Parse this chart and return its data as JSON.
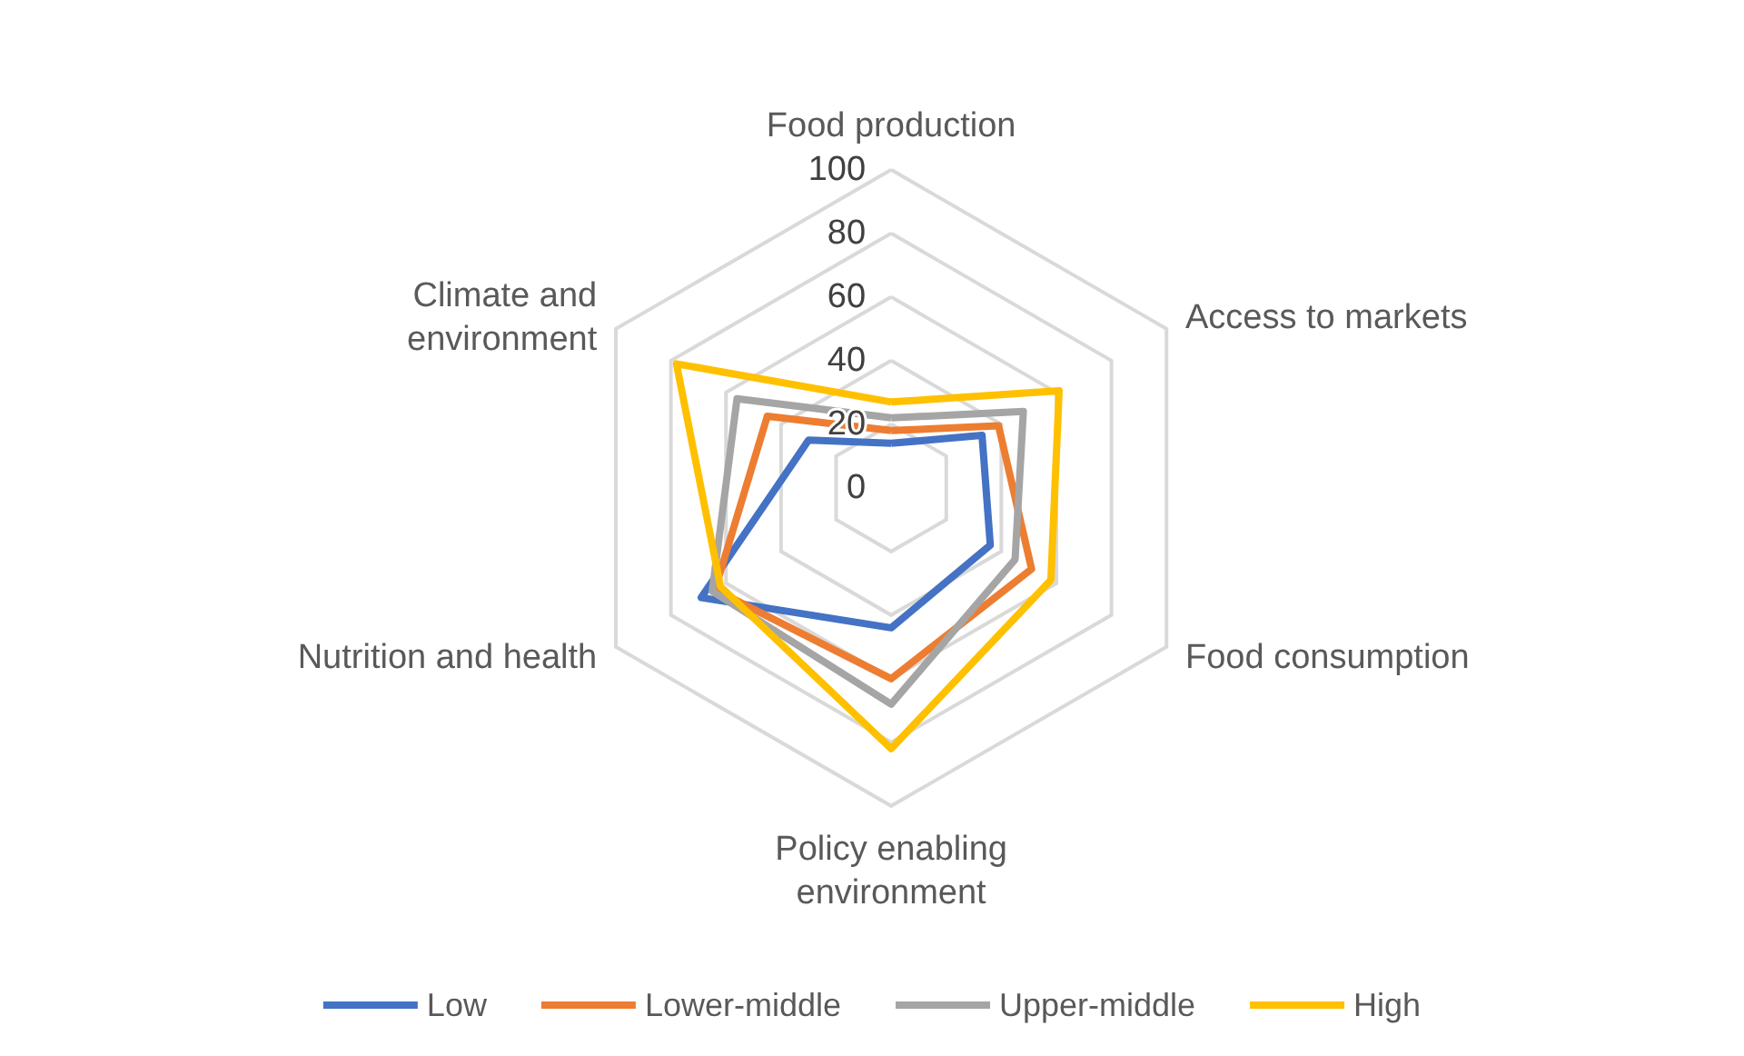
{
  "chart_data": {
    "type": "radar",
    "categories": [
      "Food production",
      "Access to markets",
      "Food consumption",
      "Policy enabling environment",
      "Nutrition and health",
      "Climate and environment"
    ],
    "series": [
      {
        "name": "Low",
        "color": "#4472c4",
        "values": [
          14,
          33,
          36,
          44,
          69,
          30
        ]
      },
      {
        "name": "Lower-middle",
        "color": "#ed7d31",
        "values": [
          18,
          39,
          51,
          60,
          64,
          45
        ]
      },
      {
        "name": "Upper-middle",
        "color": "#a5a5a5",
        "values": [
          22,
          48,
          45,
          68,
          65,
          56
        ]
      },
      {
        "name": "High",
        "color": "#ffc000",
        "values": [
          27,
          61,
          58,
          82,
          62,
          78
        ]
      }
    ],
    "ylim": [
      0,
      100
    ],
    "yticks": [
      0,
      20,
      40,
      60,
      80,
      100
    ],
    "grid": true,
    "legend": "bottom",
    "marker": "none",
    "line_style": "solid"
  }
}
